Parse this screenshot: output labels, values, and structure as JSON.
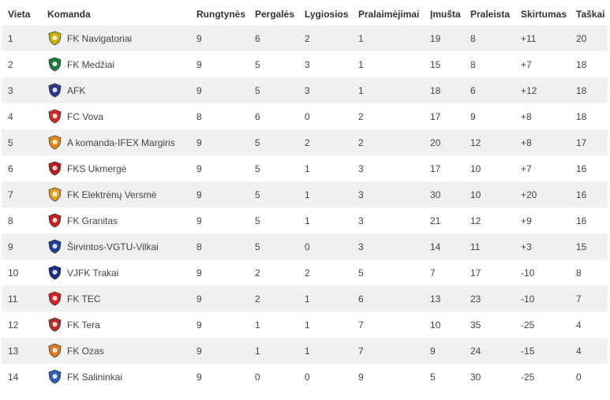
{
  "headers": [
    "Vieta",
    "Komanda",
    "Rungtynės",
    "Pergalės",
    "Lygiosios",
    "Pralaimėjimai",
    "Įmušta",
    "Praleista",
    "Skirtumas",
    "Taškai"
  ],
  "rows": [
    {
      "pos": "1",
      "team": "FK Navigatoriai",
      "logo": "navigatoriai-logo-icon",
      "color": "#c8b000",
      "p": "9",
      "w": "6",
      "d": "2",
      "l": "1",
      "gf": "19",
      "ga": "8",
      "diff": "+11",
      "pts": "20"
    },
    {
      "pos": "2",
      "team": "FK Medžiai",
      "logo": "medziai-logo-icon",
      "color": "#1e7a3a",
      "p": "9",
      "w": "5",
      "d": "3",
      "l": "1",
      "gf": "15",
      "ga": "8",
      "diff": "+7",
      "pts": "18"
    },
    {
      "pos": "3",
      "team": "AFK",
      "logo": "afk-logo-icon",
      "color": "#2a3a8c",
      "p": "9",
      "w": "5",
      "d": "3",
      "l": "1",
      "gf": "18",
      "ga": "6",
      "diff": "+12",
      "pts": "18"
    },
    {
      "pos": "4",
      "team": "FC Vova",
      "logo": "vova-logo-icon",
      "color": "#cc2a2a",
      "p": "8",
      "w": "6",
      "d": "0",
      "l": "2",
      "gf": "17",
      "ga": "9",
      "diff": "+8",
      "pts": "18"
    },
    {
      "pos": "5",
      "team": "A komanda-IFEX Margiris",
      "logo": "a-komanda-logo-icon",
      "color": "#e08a10",
      "p": "9",
      "w": "5",
      "d": "2",
      "l": "2",
      "gf": "20",
      "ga": "12",
      "diff": "+8",
      "pts": "17"
    },
    {
      "pos": "6",
      "team": "FKS Ukmergė",
      "logo": "ukmerge-logo-icon",
      "color": "#b81c1c",
      "p": "9",
      "w": "5",
      "d": "1",
      "l": "3",
      "gf": "17",
      "ga": "10",
      "diff": "+7",
      "pts": "16"
    },
    {
      "pos": "7",
      "team": "FK Elektrėnų Versmė",
      "logo": "versme-logo-icon",
      "color": "#e0a020",
      "p": "9",
      "w": "5",
      "d": "1",
      "l": "3",
      "gf": "30",
      "ga": "10",
      "diff": "+20",
      "pts": "16"
    },
    {
      "pos": "8",
      "team": "FK Granitas",
      "logo": "granitas-logo-icon",
      "color": "#c82020",
      "p": "9",
      "w": "5",
      "d": "1",
      "l": "3",
      "gf": "21",
      "ga": "12",
      "diff": "+9",
      "pts": "16"
    },
    {
      "pos": "9",
      "team": "Širvintos-VGTU-Vilkai",
      "logo": "vilkai-logo-icon",
      "color": "#1e3f8c",
      "p": "8",
      "w": "5",
      "d": "0",
      "l": "3",
      "gf": "14",
      "ga": "11",
      "diff": "+3",
      "pts": "15"
    },
    {
      "pos": "10",
      "team": "VJFK Trakai",
      "logo": "trakai-logo-icon",
      "color": "#1a2f80",
      "p": "9",
      "w": "2",
      "d": "2",
      "l": "5",
      "gf": "7",
      "ga": "17",
      "diff": "-10",
      "pts": "8"
    },
    {
      "pos": "11",
      "team": "FK TEC",
      "logo": "tec-logo-icon",
      "color": "#d42020",
      "p": "9",
      "w": "2",
      "d": "1",
      "l": "6",
      "gf": "13",
      "ga": "23",
      "diff": "-10",
      "pts": "7"
    },
    {
      "pos": "12",
      "team": "FK Tera",
      "logo": "tera-logo-icon",
      "color": "#b0302a",
      "p": "9",
      "w": "1",
      "d": "1",
      "l": "7",
      "gf": "10",
      "ga": "35",
      "diff": "-25",
      "pts": "4"
    },
    {
      "pos": "13",
      "team": "FK Ozas",
      "logo": "ozas-logo-icon",
      "color": "#e07820",
      "p": "9",
      "w": "1",
      "d": "1",
      "l": "7",
      "gf": "9",
      "ga": "24",
      "diff": "-15",
      "pts": "4"
    },
    {
      "pos": "14",
      "team": "FK Salininkai",
      "logo": "salininkai-logo-icon",
      "color": "#2f5fb0",
      "p": "9",
      "w": "0",
      "d": "0",
      "l": "9",
      "gf": "5",
      "ga": "30",
      "diff": "-25",
      "pts": "0"
    }
  ]
}
